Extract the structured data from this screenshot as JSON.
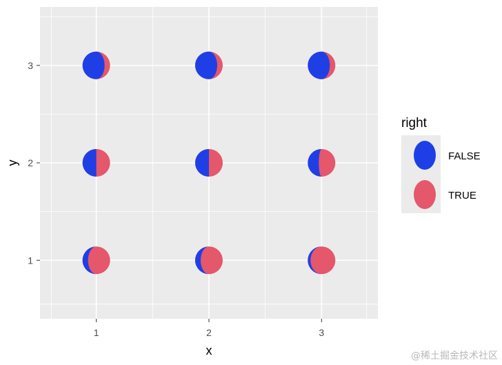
{
  "chart_data": {
    "type": "scatter",
    "title": "",
    "xlabel": "x",
    "ylabel": "y",
    "x_ticks": [
      "1",
      "2",
      "3"
    ],
    "y_ticks": [
      "1",
      "2",
      "3"
    ],
    "xlim": [
      0.5,
      3.5
    ],
    "ylim": [
      0.4,
      3.6
    ],
    "grid": true,
    "legend": {
      "title": "right",
      "position": "right",
      "entries": [
        {
          "label": "FALSE",
          "color": "#1f3fe6"
        },
        {
          "label": "TRUE",
          "color": "#e5576b"
        }
      ]
    },
    "points": [
      {
        "x": 1,
        "y": 1,
        "right_fraction": 0.8
      },
      {
        "x": 2,
        "y": 1,
        "right_fraction": 0.8
      },
      {
        "x": 3,
        "y": 1,
        "right_fraction": 0.9
      },
      {
        "x": 1,
        "y": 2,
        "right_fraction": 0.5
      },
      {
        "x": 2,
        "y": 2,
        "right_fraction": 0.5
      },
      {
        "x": 3,
        "y": 2,
        "right_fraction": 0.6
      },
      {
        "x": 1,
        "y": 3,
        "right_fraction": 0.2
      },
      {
        "x": 2,
        "y": 3,
        "right_fraction": 0.2
      },
      {
        "x": 3,
        "y": 3,
        "right_fraction": 0.2
      }
    ]
  },
  "watermark": "@稀土掘金技术社区"
}
